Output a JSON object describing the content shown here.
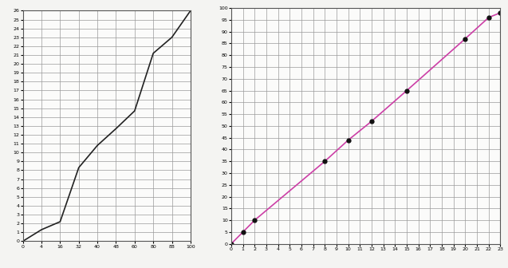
{
  "chart_data": [
    {
      "type": "line",
      "categories": [
        "0",
        "4",
        "16",
        "32",
        "40",
        "48",
        "60",
        "80",
        "88",
        "100"
      ],
      "values": [
        0,
        1.3,
        2.2,
        8.3,
        10.8,
        12.7,
        14.7,
        21.2,
        23,
        26
      ],
      "color": "#222222",
      "line_style": "solid",
      "marker": "none",
      "ylim": [
        0,
        26
      ],
      "yticks": [
        0,
        1,
        2,
        3,
        4,
        5,
        6,
        7,
        8,
        9,
        10,
        11,
        12,
        13,
        14,
        15,
        16,
        17,
        18,
        19,
        20,
        21,
        22,
        23,
        24,
        25,
        26
      ],
      "grid": true
    },
    {
      "type": "line",
      "x": [
        0,
        1,
        2,
        8,
        10,
        12,
        15,
        20,
        22,
        23
      ],
      "values": [
        0,
        5,
        10,
        35,
        44,
        52,
        65,
        87,
        96,
        98
      ],
      "color": "#cc3fa6",
      "line_style": "solid",
      "marker": "o",
      "xlim": [
        0,
        23
      ],
      "xticks": [
        0,
        1,
        2,
        3,
        4,
        5,
        6,
        7,
        8,
        9,
        10,
        11,
        12,
        13,
        14,
        15,
        16,
        17,
        18,
        19,
        20,
        21,
        22,
        23
      ],
      "ylim": [
        0,
        100
      ],
      "yticks": [
        0,
        5,
        10,
        15,
        20,
        25,
        30,
        35,
        40,
        45,
        50,
        55,
        60,
        65,
        70,
        75,
        80,
        85,
        90,
        95,
        100
      ],
      "grid": true
    }
  ]
}
